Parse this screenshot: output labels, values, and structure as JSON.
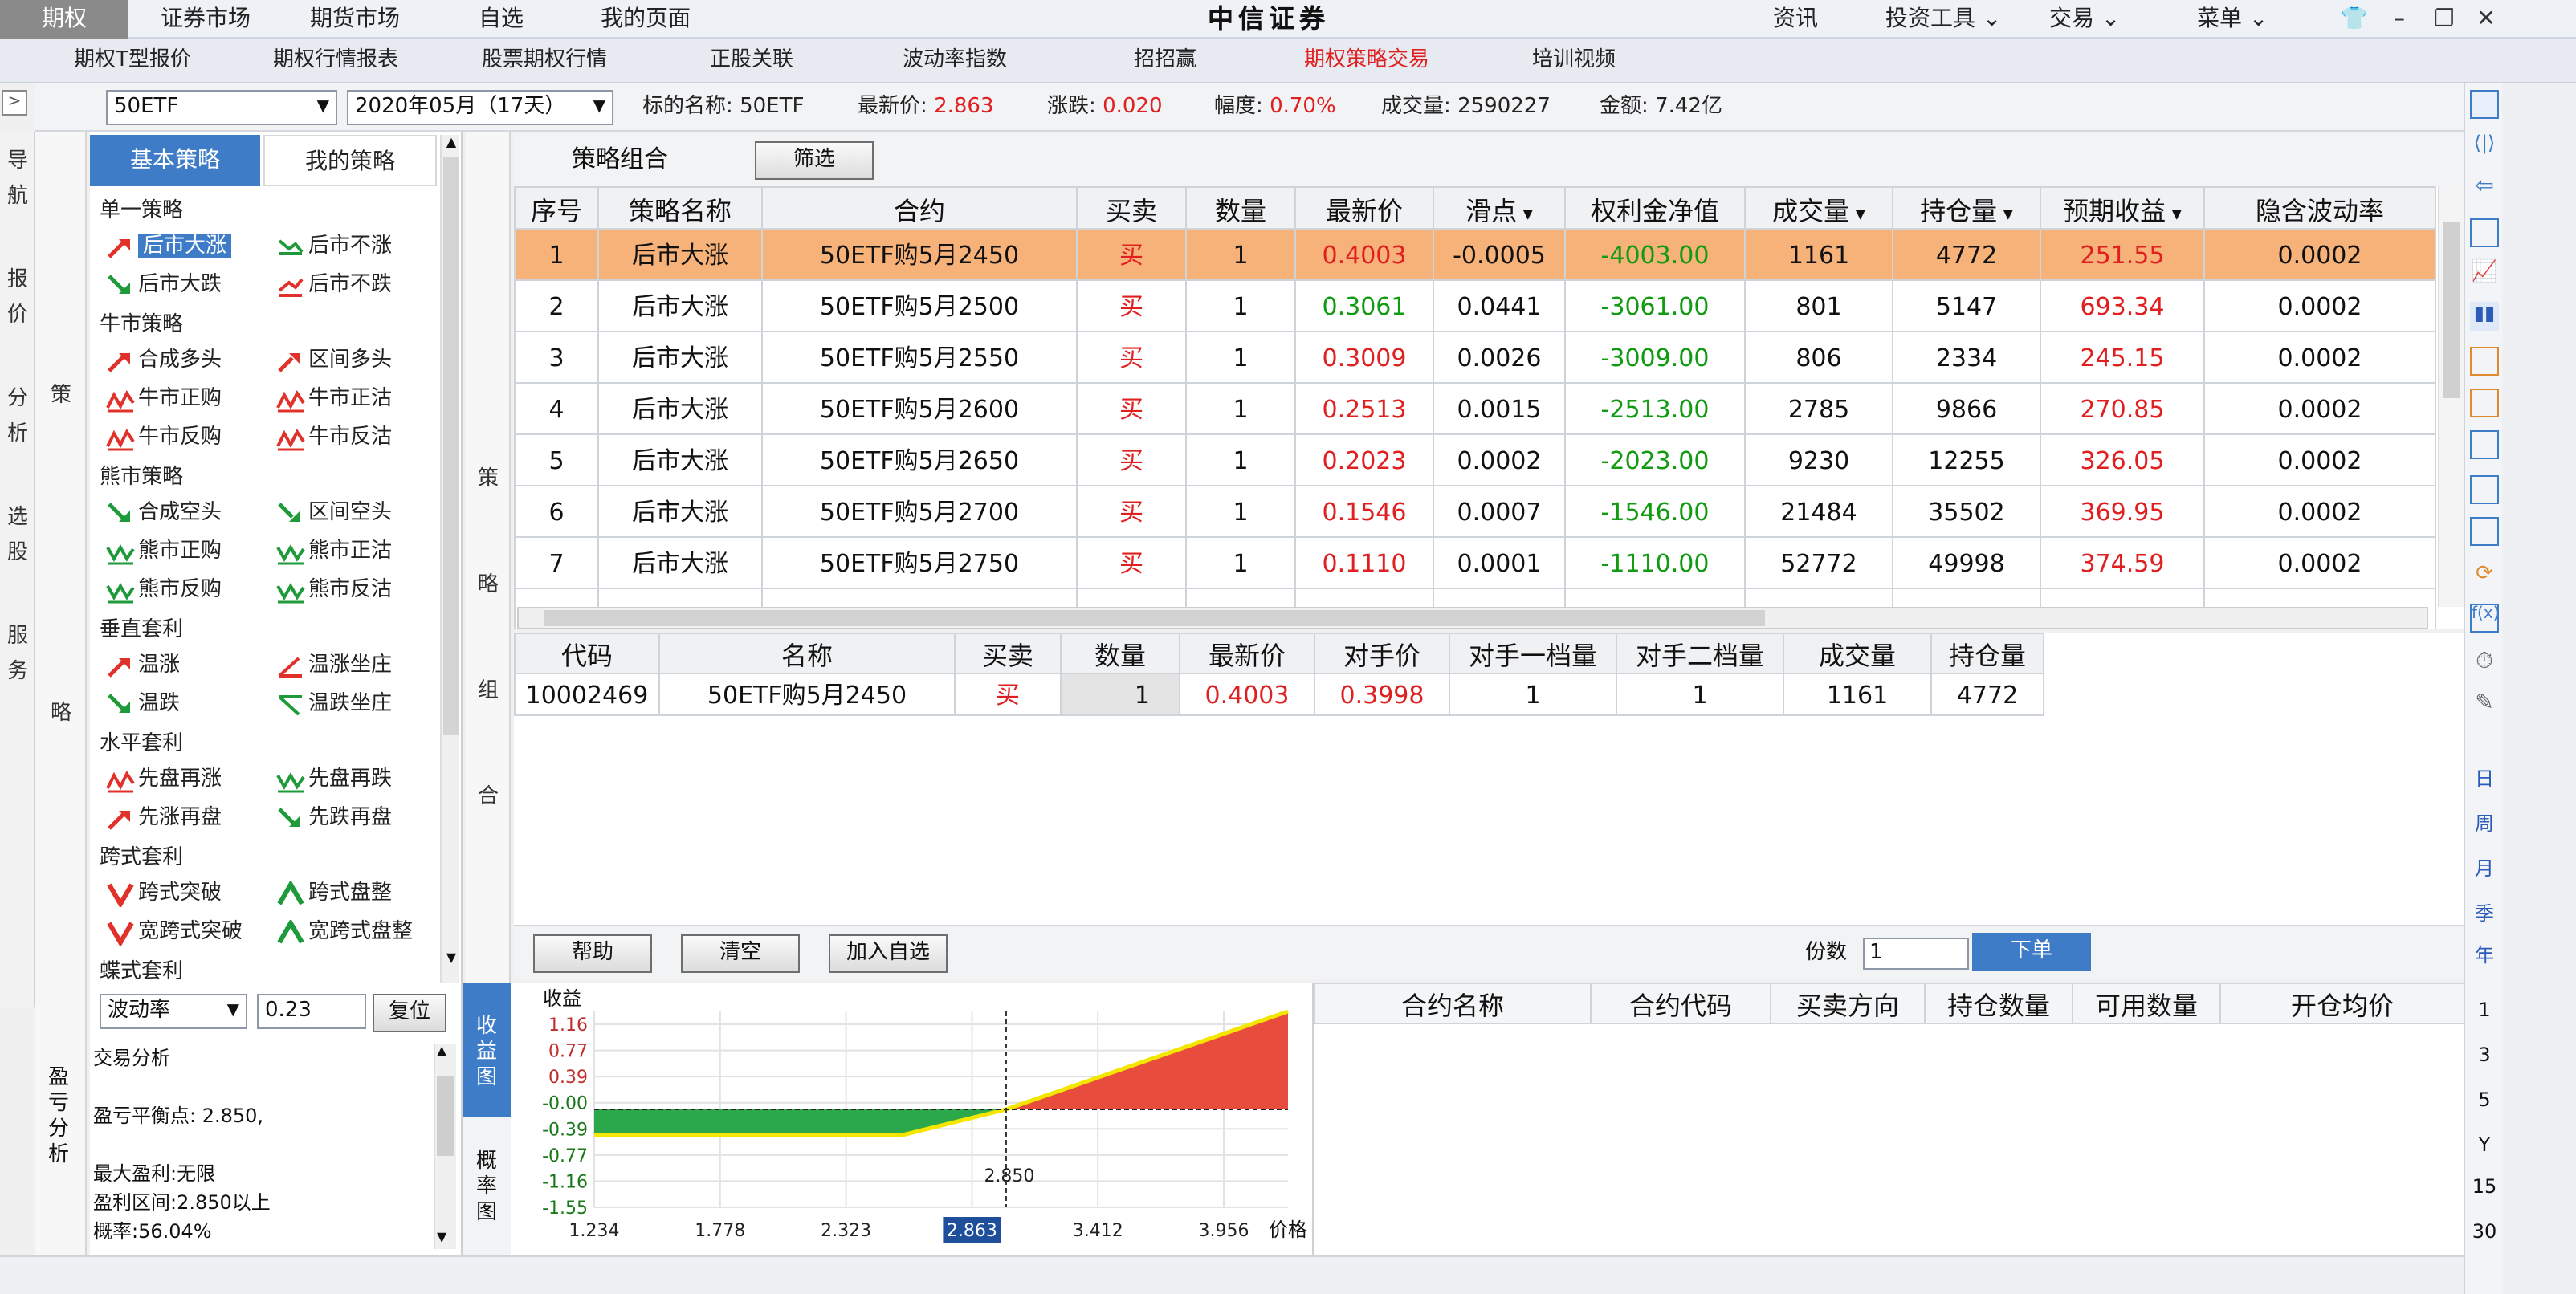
{
  "top_nav": {
    "items": [
      "期权",
      "证券市场",
      "期货市场",
      "自选",
      "我的页面"
    ],
    "active": 0,
    "brand": "中信证券",
    "right_items": [
      "资讯",
      "投资工具",
      "交易",
      "菜单"
    ]
  },
  "sub_nav": {
    "items": [
      "期权T型报价",
      "期权行情报表",
      "股票期权行情",
      "正股关联",
      "波动率指数",
      "招招赢",
      "期权策略交易",
      "培训视频"
    ],
    "active": 6
  },
  "filter": {
    "underlying": "50ETF",
    "expiry": "2020年05月（17天）",
    "name_label": "标的名称:",
    "name_value": "50ETF",
    "last_label": "最新价:",
    "last_value": "2.863",
    "change_label": "涨跌:",
    "change_value": "0.020",
    "pct_label": "幅度:",
    "pct_value": "0.70%",
    "volume_label": "成交量:",
    "volume_value": "2590227",
    "amount_label": "金额:",
    "amount_value": "7.42亿"
  },
  "left_nav": {
    "items": [
      "导航",
      "报价",
      "分析",
      "选股",
      "服务"
    ],
    "collapse_icon": "expand-arrow-icon"
  },
  "strategy_panel": {
    "side_label_top": "策",
    "side_label_bottom": "略",
    "tabs": [
      "基本策略",
      "我的策略"
    ],
    "active_tab": 0,
    "groups": [
      {
        "title": "单一策略",
        "items": [
          [
            "后市大涨",
            "up"
          ],
          [
            "后市不涨",
            "flat-down"
          ],
          [
            "后市大跌",
            "down"
          ],
          [
            "后市不跌",
            "flat-up"
          ]
        ]
      },
      {
        "title": "牛市策略",
        "items": [
          [
            "合成多头",
            "up"
          ],
          [
            "区间多头",
            "up-step"
          ],
          [
            "牛市正购",
            "wave-red"
          ],
          [
            "牛市正沽",
            "wave-red"
          ],
          [
            "牛市反购",
            "wave-red"
          ],
          [
            "牛市反沽",
            "wave-red"
          ]
        ]
      },
      {
        "title": "熊市策略",
        "items": [
          [
            "合成空头",
            "down"
          ],
          [
            "区间空头",
            "down-step"
          ],
          [
            "熊市正购",
            "wave-green"
          ],
          [
            "熊市正沽",
            "wave-green"
          ],
          [
            "熊市反购",
            "wave-green"
          ],
          [
            "熊市反沽",
            "wave-green"
          ]
        ]
      },
      {
        "title": "垂直套利",
        "items": [
          [
            "温涨",
            "up"
          ],
          [
            "温涨坐庄",
            "up-corner"
          ],
          [
            "温跌",
            "down"
          ],
          [
            "温跌坐庄",
            "down-corner"
          ]
        ]
      },
      {
        "title": "水平套利",
        "items": [
          [
            "先盘再涨",
            "wave-red"
          ],
          [
            "先盘再跌",
            "wave-green"
          ],
          [
            "先涨再盘",
            "up"
          ],
          [
            "先跌再盘",
            "down"
          ]
        ]
      },
      {
        "title": "跨式套利",
        "items": [
          [
            "跨式突破",
            "v-red"
          ],
          [
            "跨式盘整",
            "a-green"
          ],
          [
            "宽跨式突破",
            "v-red"
          ],
          [
            "宽跨式盘整",
            "a-green"
          ]
        ]
      },
      {
        "title": "蝶式套利",
        "items": []
      }
    ],
    "selected_item": "后市大涨"
  },
  "center_label": [
    "策",
    "略",
    "组",
    "合"
  ],
  "strategy_table": {
    "title": "策略组合",
    "filter_button": "筛选",
    "columns": [
      "序号",
      "策略名称",
      "合约",
      "买卖",
      "数量",
      "最新价",
      "滑点",
      "权利金净值",
      "成交量",
      "持仓量",
      "预期收益",
      "隐含波动率"
    ],
    "sortable": [
      false,
      false,
      false,
      false,
      false,
      false,
      true,
      false,
      true,
      true,
      true,
      false
    ],
    "rows": [
      [
        "1",
        "后市大涨",
        "50ETF购5月2450",
        "买",
        "1",
        "0.4003",
        "-0.0005",
        "-4003.00",
        "1161",
        "4772",
        "251.55",
        "0.0002"
      ],
      [
        "2",
        "后市大涨",
        "50ETF购5月2500",
        "买",
        "1",
        "0.3061",
        "0.0441",
        "-3061.00",
        "801",
        "5147",
        "693.34",
        "0.0002"
      ],
      [
        "3",
        "后市大涨",
        "50ETF购5月2550",
        "买",
        "1",
        "0.3009",
        "0.0026",
        "-3009.00",
        "806",
        "2334",
        "245.15",
        "0.0002"
      ],
      [
        "4",
        "后市大涨",
        "50ETF购5月2600",
        "买",
        "1",
        "0.2513",
        "0.0015",
        "-2513.00",
        "2785",
        "9866",
        "270.85",
        "0.0002"
      ],
      [
        "5",
        "后市大涨",
        "50ETF购5月2650",
        "买",
        "1",
        "0.2023",
        "0.0002",
        "-2023.00",
        "9230",
        "12255",
        "326.05",
        "0.0002"
      ],
      [
        "6",
        "后市大涨",
        "50ETF购5月2700",
        "买",
        "1",
        "0.1546",
        "0.0007",
        "-1546.00",
        "21484",
        "35502",
        "369.95",
        "0.0002"
      ],
      [
        "7",
        "后市大涨",
        "50ETF购5月2750",
        "买",
        "1",
        "0.1110",
        "0.0001",
        "-1110.00",
        "52772",
        "49998",
        "374.59",
        "0.0002"
      ]
    ],
    "price_colors": [
      "red",
      "green",
      "red",
      "red",
      "red",
      "red",
      "red"
    ],
    "selected_row": 0
  },
  "contract_detail": {
    "columns": [
      "代码",
      "名称",
      "买卖",
      "数量",
      "最新价",
      "对手价",
      "对手一档量",
      "对手二档量",
      "成交量",
      "持仓量"
    ],
    "row": [
      "10002469",
      "50ETF购5月2450",
      "买",
      "1",
      "0.4003",
      "0.3998",
      "1",
      "1",
      "1161",
      "4772"
    ]
  },
  "actions": {
    "help": "帮助",
    "clear": "清空",
    "add_watch": "加入自选",
    "shares_label": "份数",
    "shares_value": "1",
    "order": "下单"
  },
  "analysis": {
    "side_label": "盈亏分析",
    "mode": "波动率",
    "value": "0.23",
    "reset": "复位",
    "lines": [
      "交易分析",
      "",
      "盈亏平衡点: 2.850,",
      "",
      "最大盈利:无限",
      "盈利区间:2.850以上",
      "概率:56.04%"
    ]
  },
  "chart_tabs": [
    "收益图",
    "概率图"
  ],
  "chart_data": {
    "type": "area",
    "title": "",
    "ylabel": "收益",
    "xlabel": "价格",
    "yticks": [
      "1.16",
      "0.77",
      "0.39",
      "-0.00",
      "-0.39",
      "-0.77",
      "-1.16",
      "-1.55"
    ],
    "xticks": [
      "1.234",
      "1.778",
      "2.323",
      "2.863",
      "3.412",
      "3.956"
    ],
    "x_highlight": "2.863",
    "breakeven_label": "2.850",
    "x": [
      1.234,
      2.45,
      2.85,
      3.956
    ],
    "y": [
      -0.4,
      -0.4,
      0.0,
      1.55
    ],
    "ylim": [
      -1.55,
      1.55
    ],
    "colors": {
      "loss": "#2aa84a",
      "profit": "#e74c3c",
      "line": "#f5e600"
    }
  },
  "positions": {
    "columns": [
      "合约名称",
      "合约代码",
      "买卖方向",
      "持仓数量",
      "可用数量",
      "开仓均价"
    ]
  },
  "right_toolbar": {
    "period_labels": [
      "日",
      "周",
      "月",
      "季",
      "年"
    ],
    "numbers": [
      "1",
      "3",
      "5",
      "Y",
      "15",
      "30"
    ]
  }
}
